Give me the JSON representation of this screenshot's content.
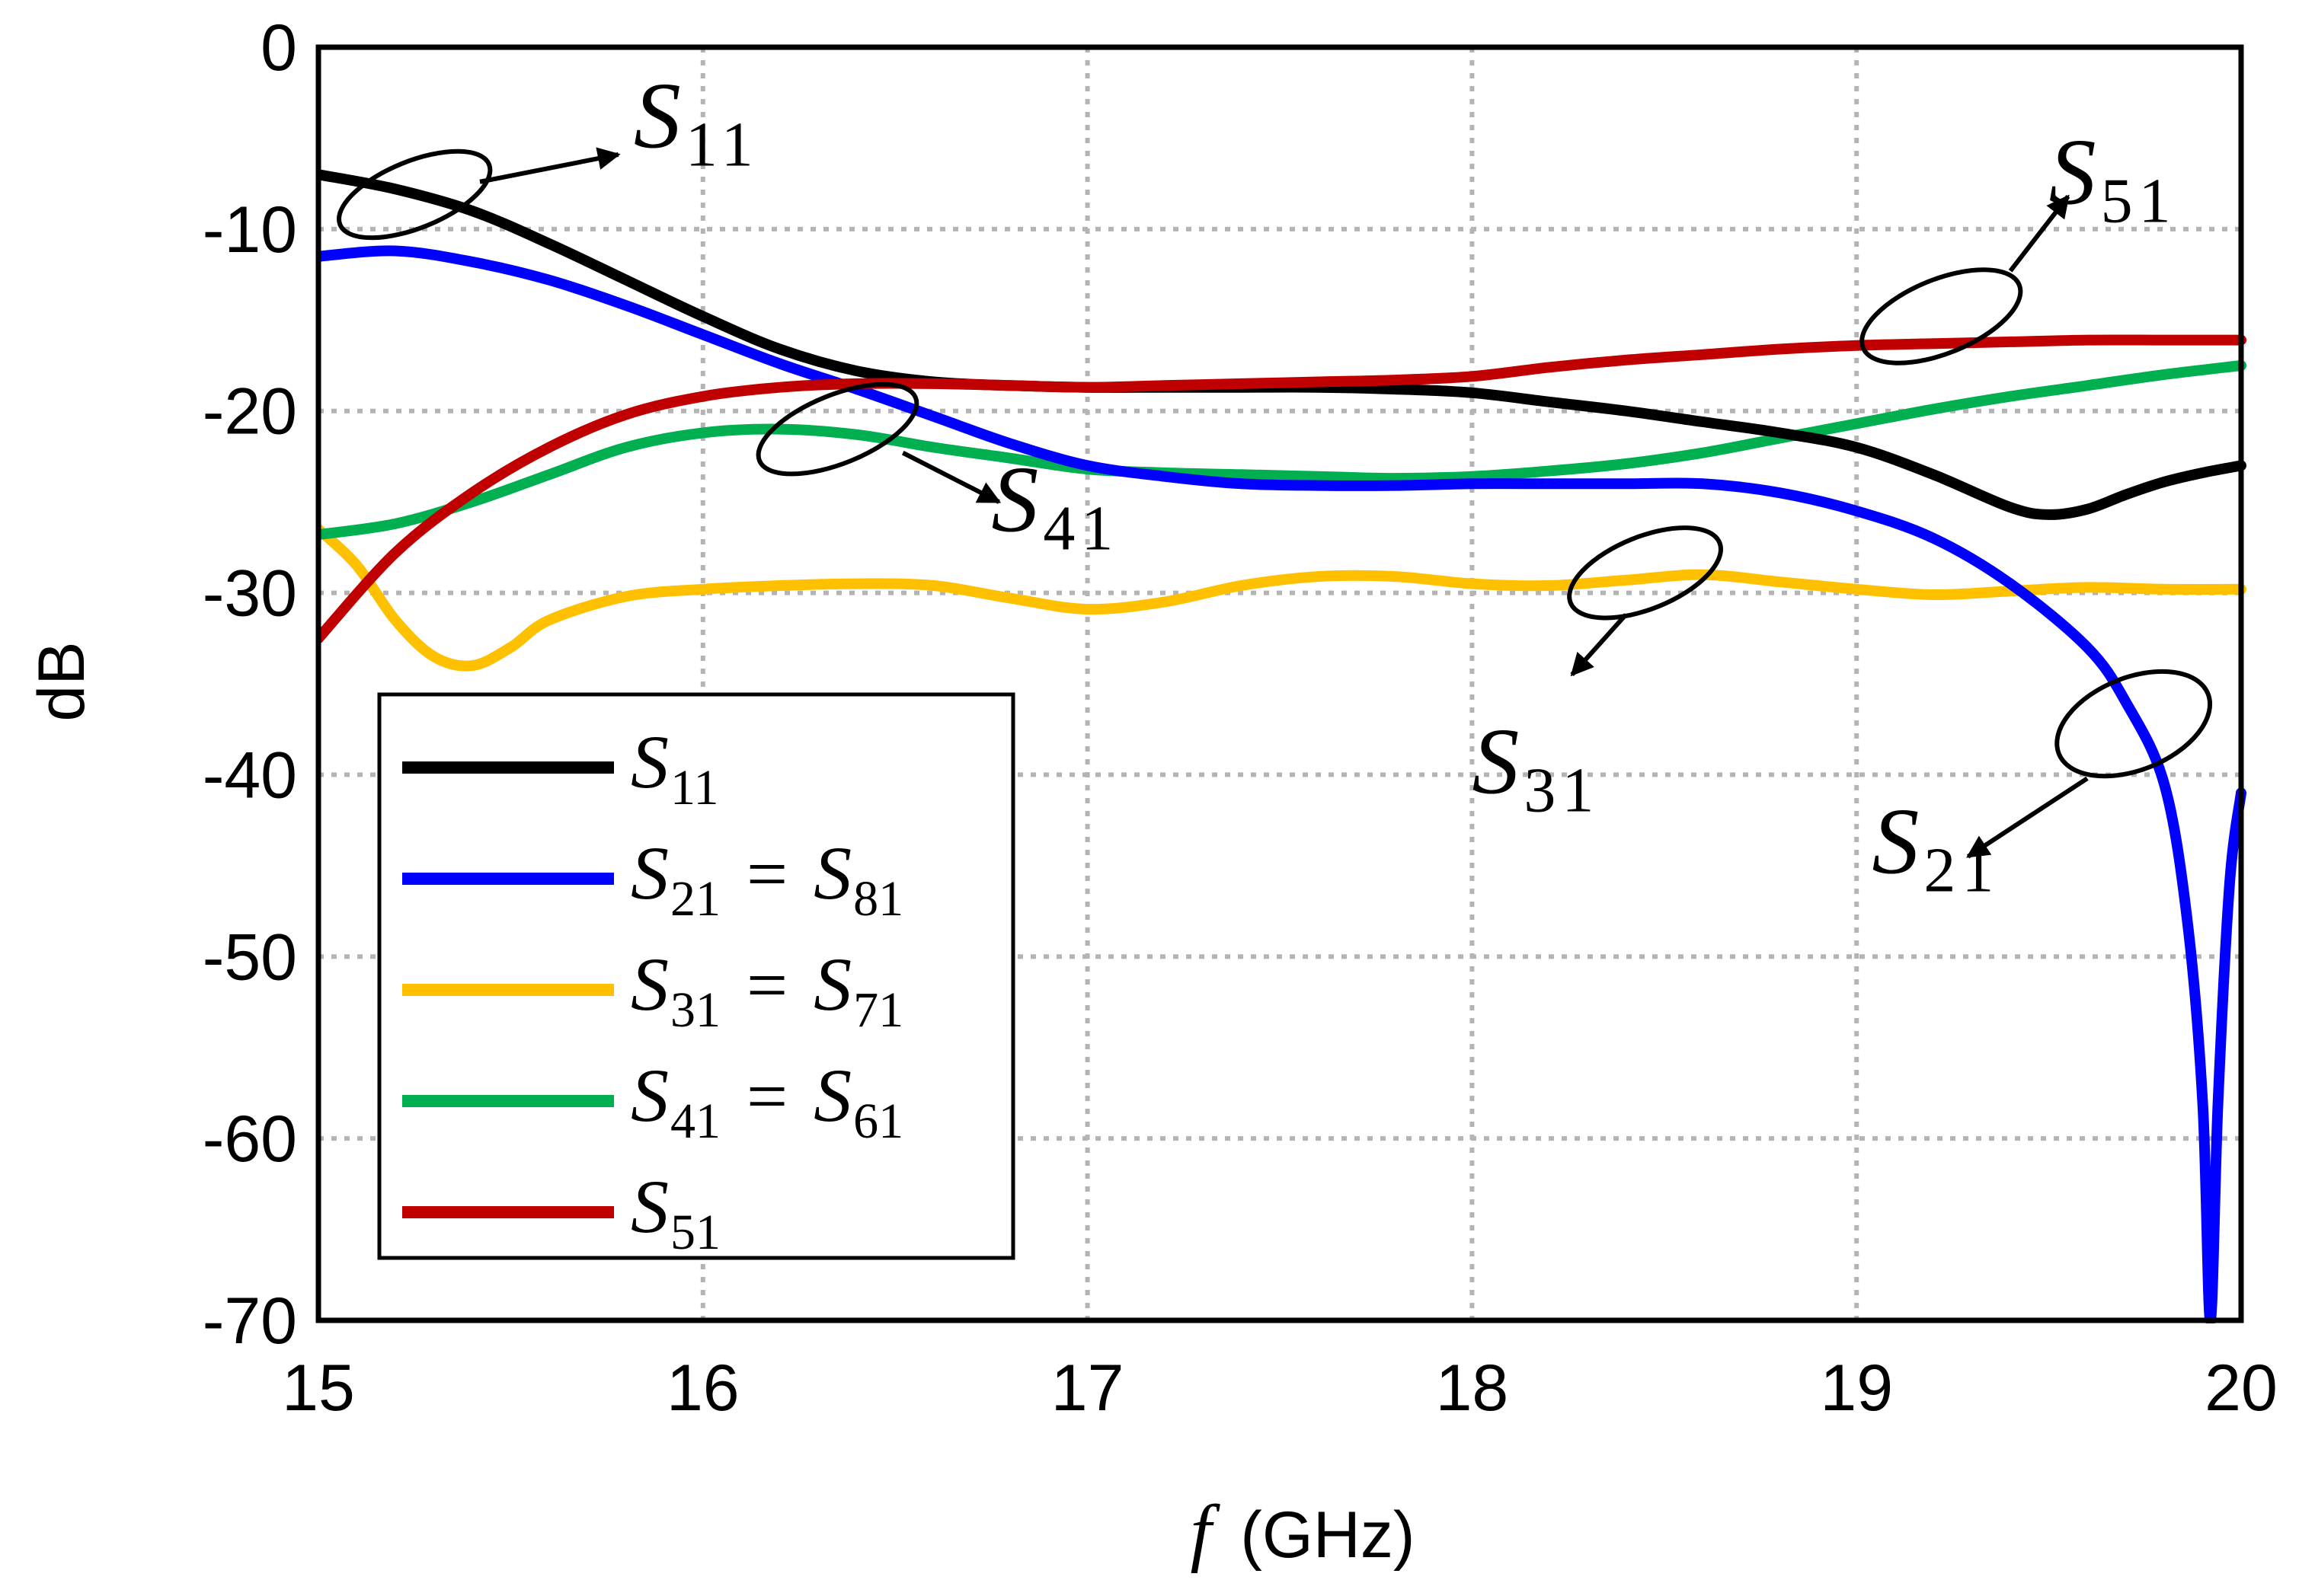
{
  "chart_data": {
    "type": "line",
    "title": "",
    "xlabel": {
      "italic": "f",
      "plain": "(GHz)"
    },
    "ylabel": "dB",
    "xlim": [
      15,
      20
    ],
    "ylim": [
      -70,
      0
    ],
    "grid": true,
    "x_ticks": [
      15,
      16,
      17,
      18,
      19,
      20
    ],
    "x_tick_labels": [
      "15",
      "16",
      "17",
      "18",
      "19",
      "20"
    ],
    "y_ticks": [
      0,
      -10,
      -20,
      -30,
      -40,
      -50,
      -60,
      -70
    ],
    "y_tick_labels": [
      "0",
      "-10",
      "-20",
      "-30",
      "-40",
      "-50",
      "-60",
      "-70"
    ],
    "legend_position": "lower-left",
    "series": [
      {
        "id": "s11",
        "color": "#000000",
        "legend": {
          "main": "S",
          "sub": "11",
          "eq": "",
          "main2": "",
          "sub2": ""
        },
        "points": [
          [
            15,
            -7
          ],
          [
            15.2,
            -7.8
          ],
          [
            15.4,
            -9
          ],
          [
            15.6,
            -10.8
          ],
          [
            15.8,
            -12.8
          ],
          [
            16.0,
            -14.8
          ],
          [
            16.2,
            -16.6
          ],
          [
            16.4,
            -17.8
          ],
          [
            16.6,
            -18.4
          ],
          [
            16.8,
            -18.6
          ],
          [
            17.0,
            -18.7
          ],
          [
            17.2,
            -18.7
          ],
          [
            17.4,
            -18.7
          ],
          [
            17.6,
            -18.7
          ],
          [
            17.8,
            -18.8
          ],
          [
            18.0,
            -19
          ],
          [
            18.2,
            -19.5
          ],
          [
            18.4,
            -20
          ],
          [
            18.6,
            -20.6
          ],
          [
            18.8,
            -21.2
          ],
          [
            19.0,
            -22
          ],
          [
            19.2,
            -23.5
          ],
          [
            19.4,
            -25.3
          ],
          [
            19.5,
            -25.7
          ],
          [
            19.6,
            -25.4
          ],
          [
            19.7,
            -24.6
          ],
          [
            19.8,
            -23.9
          ],
          [
            19.9,
            -23.4
          ],
          [
            20.0,
            -23
          ]
        ]
      },
      {
        "id": "s21",
        "color": "#0000ff",
        "legend": {
          "main": "S",
          "sub": "21",
          "eq": "=",
          "main2": "S",
          "sub2": "81"
        },
        "points": [
          [
            15,
            -11.5
          ],
          [
            15.2,
            -11.2
          ],
          [
            15.4,
            -11.8
          ],
          [
            15.6,
            -12.8
          ],
          [
            15.8,
            -14.2
          ],
          [
            16.0,
            -15.8
          ],
          [
            16.2,
            -17.4
          ],
          [
            16.4,
            -18.8
          ],
          [
            16.6,
            -20.3
          ],
          [
            16.8,
            -21.8
          ],
          [
            17.0,
            -23
          ],
          [
            17.2,
            -23.6
          ],
          [
            17.4,
            -24
          ],
          [
            17.6,
            -24.1
          ],
          [
            17.8,
            -24.1
          ],
          [
            18.0,
            -24
          ],
          [
            18.2,
            -24
          ],
          [
            18.4,
            -24
          ],
          [
            18.6,
            -24
          ],
          [
            18.8,
            -24.5
          ],
          [
            19.0,
            -25.5
          ],
          [
            19.2,
            -27
          ],
          [
            19.4,
            -29.5
          ],
          [
            19.6,
            -33
          ],
          [
            19.7,
            -36
          ],
          [
            19.8,
            -40.5
          ],
          [
            19.86,
            -48
          ],
          [
            19.9,
            -58
          ],
          [
            19.92,
            -70
          ],
          [
            19.94,
            -58
          ],
          [
            19.97,
            -46
          ],
          [
            20.0,
            -41
          ]
        ]
      },
      {
        "id": "s31",
        "color": "#ffc000",
        "legend": {
          "main": "S",
          "sub": "31",
          "eq": "=",
          "main2": "S",
          "sub2": "71"
        },
        "points": [
          [
            15,
            -26.5
          ],
          [
            15.1,
            -28.5
          ],
          [
            15.2,
            -31.5
          ],
          [
            15.3,
            -33.5
          ],
          [
            15.4,
            -34
          ],
          [
            15.5,
            -33
          ],
          [
            15.6,
            -31.5
          ],
          [
            15.8,
            -30.2
          ],
          [
            16.0,
            -29.8
          ],
          [
            16.2,
            -29.6
          ],
          [
            16.4,
            -29.5
          ],
          [
            16.6,
            -29.6
          ],
          [
            16.8,
            -30.3
          ],
          [
            17.0,
            -30.9
          ],
          [
            17.2,
            -30.5
          ],
          [
            17.4,
            -29.6
          ],
          [
            17.6,
            -29.1
          ],
          [
            17.8,
            -29.1
          ],
          [
            18.0,
            -29.5
          ],
          [
            18.2,
            -29.6
          ],
          [
            18.4,
            -29.3
          ],
          [
            18.6,
            -29
          ],
          [
            18.8,
            -29.4
          ],
          [
            19.0,
            -29.8
          ],
          [
            19.2,
            -30.1
          ],
          [
            19.4,
            -29.9
          ],
          [
            19.6,
            -29.7
          ],
          [
            19.8,
            -29.8
          ],
          [
            20.0,
            -29.8
          ]
        ]
      },
      {
        "id": "s41",
        "color": "#00b050",
        "legend": {
          "main": "S",
          "sub": "41",
          "eq": "=",
          "main2": "S",
          "sub2": "61"
        },
        "points": [
          [
            15,
            -26.8
          ],
          [
            15.2,
            -26.2
          ],
          [
            15.4,
            -25
          ],
          [
            15.6,
            -23.5
          ],
          [
            15.8,
            -22
          ],
          [
            16.0,
            -21.2
          ],
          [
            16.2,
            -21
          ],
          [
            16.4,
            -21.3
          ],
          [
            16.6,
            -22
          ],
          [
            16.8,
            -22.6
          ],
          [
            17.0,
            -23.2
          ],
          [
            17.2,
            -23.4
          ],
          [
            17.4,
            -23.5
          ],
          [
            17.6,
            -23.6
          ],
          [
            17.8,
            -23.7
          ],
          [
            18.0,
            -23.6
          ],
          [
            18.2,
            -23.3
          ],
          [
            18.4,
            -22.9
          ],
          [
            18.6,
            -22.3
          ],
          [
            18.8,
            -21.5
          ],
          [
            19.0,
            -20.7
          ],
          [
            19.2,
            -19.9
          ],
          [
            19.4,
            -19.2
          ],
          [
            19.6,
            -18.6
          ],
          [
            19.8,
            -18
          ],
          [
            20.0,
            -17.5
          ]
        ]
      },
      {
        "id": "s51",
        "color": "#c00000",
        "legend": {
          "main": "S",
          "sub": "51",
          "eq": "",
          "main2": "",
          "sub2": ""
        },
        "points": [
          [
            15,
            -32.5
          ],
          [
            15.2,
            -27.8
          ],
          [
            15.4,
            -24.5
          ],
          [
            15.6,
            -22
          ],
          [
            15.8,
            -20.2
          ],
          [
            16.0,
            -19.2
          ],
          [
            16.2,
            -18.7
          ],
          [
            16.4,
            -18.5
          ],
          [
            16.6,
            -18.5
          ],
          [
            16.8,
            -18.6
          ],
          [
            17.0,
            -18.7
          ],
          [
            17.2,
            -18.6
          ],
          [
            17.4,
            -18.5
          ],
          [
            17.6,
            -18.4
          ],
          [
            17.8,
            -18.3
          ],
          [
            18.0,
            -18.1
          ],
          [
            18.2,
            -17.6
          ],
          [
            18.4,
            -17.2
          ],
          [
            18.6,
            -16.9
          ],
          [
            18.8,
            -16.6
          ],
          [
            19.0,
            -16.4
          ],
          [
            19.2,
            -16.3
          ],
          [
            19.4,
            -16.2
          ],
          [
            19.6,
            -16.1
          ],
          [
            19.8,
            -16.1
          ],
          [
            20.0,
            -16.1
          ]
        ]
      }
    ],
    "annotations": [
      {
        "id": "s11",
        "main": "S",
        "sub": "11",
        "ellipse_center": [
          15.25,
          -8.1
        ],
        "ellipse_span": [
          0.2,
          2.0
        ],
        "arrow_from": [
          15.42,
          -7.4
        ],
        "arrow_to": [
          15.78,
          -5.9
        ],
        "label_at": [
          15.82,
          -5.5
        ]
      },
      {
        "id": "s51",
        "main": "S",
        "sub": "51",
        "ellipse_center": [
          19.22,
          -14.8
        ],
        "ellipse_span": [
          0.22,
          2.4
        ],
        "arrow_from": [
          19.4,
          -12.3
        ],
        "arrow_to": [
          19.55,
          -8.2
        ],
        "label_at": [
          19.5,
          -8.6
        ]
      },
      {
        "id": "s41",
        "main": "S",
        "sub": "41",
        "ellipse_center": [
          16.35,
          -21.0
        ],
        "ellipse_span": [
          0.22,
          2.1
        ],
        "arrow_from": [
          16.52,
          -22.3
        ],
        "arrow_to": [
          16.77,
          -25.0
        ],
        "label_at": [
          16.75,
          -26.6
        ]
      },
      {
        "id": "s31",
        "main": "S",
        "sub": "31",
        "ellipse_center": [
          18.45,
          -28.9
        ],
        "ellipse_span": [
          0.2,
          2.3
        ],
        "arrow_from": [
          18.4,
          -31.2
        ],
        "arrow_to": [
          18.26,
          -34.5
        ],
        "label_at": [
          18.0,
          -41.0
        ]
      },
      {
        "id": "s21",
        "main": "S",
        "sub": "21",
        "ellipse_center": [
          19.72,
          -37.2
        ],
        "ellipse_span": [
          0.2,
          3.4
        ],
        "arrow_from": [
          19.6,
          -40.2
        ],
        "arrow_to": [
          19.29,
          -44.5
        ],
        "label_at": [
          19.04,
          -45.4
        ]
      }
    ]
  }
}
